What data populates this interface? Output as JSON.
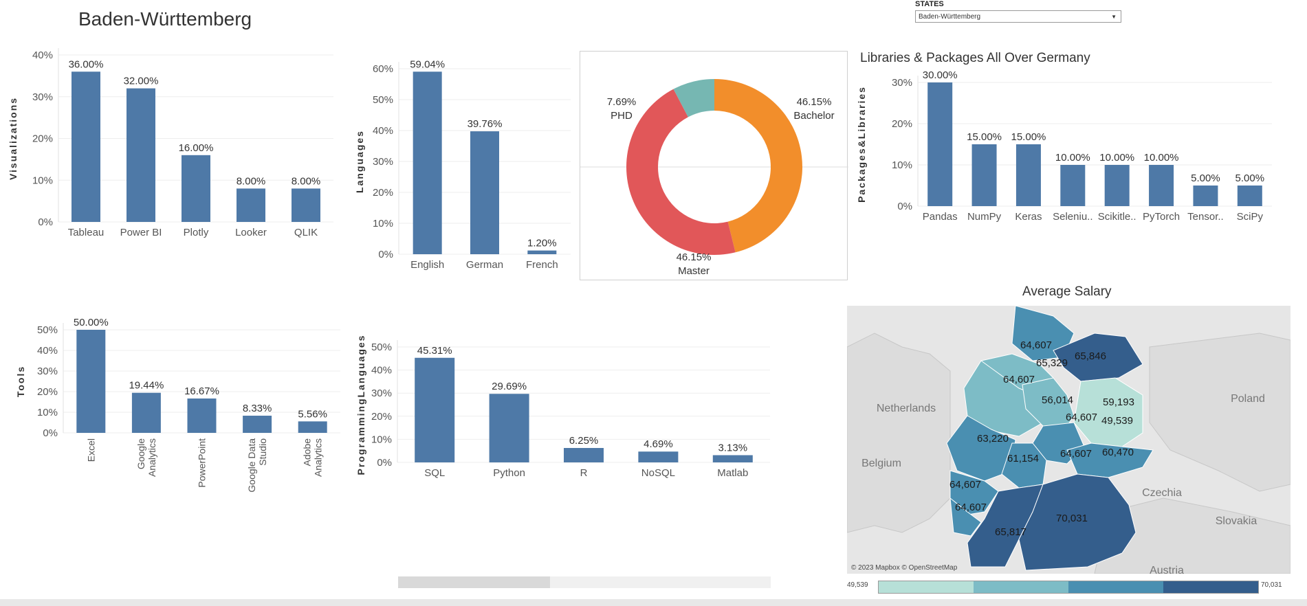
{
  "header": {
    "title": "Baden-Württemberg"
  },
  "filter": {
    "label": "STATES",
    "value": "Baden-Württemberg"
  },
  "colors": {
    "bar": "#4e79a7",
    "bachelor": "#f28e2b",
    "master": "#e15759",
    "phd": "#76b7b2"
  },
  "chart_data": [
    {
      "type": "bar",
      "ylabel": "Visualizations",
      "categories": [
        "Tableau",
        "Power BI",
        "Plotly",
        "Looker",
        "QLIK"
      ],
      "values": [
        36.0,
        32.0,
        16.0,
        8.0,
        8.0
      ],
      "value_labels": [
        "36.00%",
        "32.00%",
        "16.00%",
        "8.00%",
        "8.00%"
      ],
      "yticks": [
        "0%",
        "10%",
        "20%",
        "30%",
        "40%"
      ],
      "ylim": [
        0,
        40
      ]
    },
    {
      "type": "bar",
      "ylabel": "Languages",
      "categories": [
        "English",
        "German",
        "French"
      ],
      "values": [
        59.04,
        39.76,
        1.2
      ],
      "value_labels": [
        "59.04%",
        "39.76%",
        "1.20%"
      ],
      "yticks": [
        "0%",
        "10%",
        "20%",
        "30%",
        "40%",
        "50%",
        "60%"
      ],
      "ylim": [
        0,
        60
      ]
    },
    {
      "type": "pie",
      "slices": [
        {
          "name": "Bachelor",
          "value": 46.15,
          "label": "46.15%"
        },
        {
          "name": "Master",
          "value": 46.15,
          "label": "46.15%"
        },
        {
          "name": "PHD",
          "value": 7.69,
          "label": "7.69%"
        }
      ]
    },
    {
      "type": "bar",
      "title": "Libraries & Packages All Over Germany",
      "ylabel": "Packages&Libraries",
      "categories": [
        "Pandas",
        "NumPy",
        "Keras",
        "Seleniu..",
        "Scikitle..",
        "PyTorch",
        "Tensor..",
        "SciPy"
      ],
      "values": [
        30.0,
        15.0,
        15.0,
        10.0,
        10.0,
        10.0,
        5.0,
        5.0
      ],
      "value_labels": [
        "30.00%",
        "15.00%",
        "15.00%",
        "10.00%",
        "10.00%",
        "10.00%",
        "5.00%",
        "5.00%"
      ],
      "yticks": [
        "0%",
        "10%",
        "20%",
        "30%"
      ],
      "ylim": [
        0,
        30
      ]
    },
    {
      "type": "bar",
      "ylabel": "Tools",
      "categories": [
        "Excel",
        "Google Analytics",
        "PowerPoint",
        "Google Data Studio",
        "Adobe Analytics"
      ],
      "category_lines": [
        [
          "Excel"
        ],
        [
          "Google",
          "Analytics"
        ],
        [
          "PowerPoint"
        ],
        [
          "Google Data",
          "Studio"
        ],
        [
          "Adobe",
          "Analytics"
        ]
      ],
      "values": [
        50.0,
        19.44,
        16.67,
        8.33,
        5.56
      ],
      "value_labels": [
        "50.00%",
        "19.44%",
        "16.67%",
        "8.33%",
        "5.56%"
      ],
      "yticks": [
        "0%",
        "10%",
        "20%",
        "30%",
        "40%",
        "50%"
      ],
      "ylim": [
        0,
        50
      ]
    },
    {
      "type": "bar",
      "ylabel": "ProgrammingLanguages",
      "categories": [
        "SQL",
        "Python",
        "R",
        "NoSQL",
        "Matlab"
      ],
      "values": [
        45.31,
        29.69,
        6.25,
        4.69,
        3.13
      ],
      "value_labels": [
        "45.31%",
        "29.69%",
        "6.25%",
        "4.69%",
        "3.13%"
      ],
      "yticks": [
        "0%",
        "10%",
        "20%",
        "30%",
        "40%",
        "50%"
      ],
      "ylim": [
        0,
        50
      ]
    }
  ],
  "map": {
    "title": "Average Salary",
    "attribution": "© 2023 Mapbox © OpenStreetMap",
    "countries": [
      "Netherlands",
      "Belgium",
      "Poland",
      "Czechia",
      "Slovakia",
      "Austria"
    ],
    "salary_labels": [
      "64,607",
      "65,329",
      "65,846",
      "64,607",
      "56,014",
      "59,193",
      "49,539",
      "64,607",
      "63,220",
      "61,154",
      "64,607",
      "60,470",
      "64,607",
      "64,607",
      "70,031",
      "65,817"
    ],
    "legend_min": "49,539",
    "legend_max": "70,031",
    "legend_colors": [
      "#b7e0d8",
      "#7dbcc6",
      "#4a8fb1",
      "#345e8c"
    ]
  }
}
